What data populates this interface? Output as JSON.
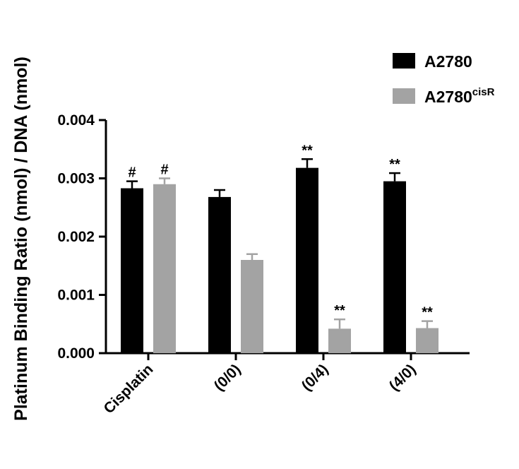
{
  "chart_data": {
    "type": "bar",
    "title": "",
    "xlabel": "",
    "ylabel": "Platinum Binding Ratio (nmol) / DNA (nmol)",
    "ylim": [
      0,
      0.004
    ],
    "yticks": [
      "0.000",
      "0.001",
      "0.002",
      "0.003",
      "0.004"
    ],
    "categories": [
      "Cisplatin",
      "(0/0)",
      "(0/4)",
      "(4/0)"
    ],
    "grid": false,
    "legend_position": "top-right",
    "series": [
      {
        "name": "A2780",
        "name_base": "A2780",
        "name_sup": "",
        "color": "#000000",
        "values": [
          0.00283,
          0.00268,
          0.00318,
          0.00295
        ],
        "errors": [
          0.00012,
          0.00012,
          0.00015,
          0.00014
        ],
        "annotations": [
          "#",
          "",
          "**",
          "**"
        ]
      },
      {
        "name": "A2780cisR",
        "name_base": "A2780",
        "name_sup": "cisR",
        "color": "#a3a3a3",
        "values": [
          0.0029,
          0.0016,
          0.00042,
          0.00043
        ],
        "errors": [
          0.0001,
          0.0001,
          0.00016,
          0.00012
        ],
        "annotations": [
          "#",
          "",
          "**",
          "**"
        ]
      }
    ]
  }
}
